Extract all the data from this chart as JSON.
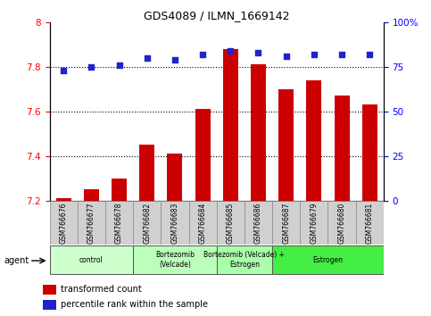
{
  "title": "GDS4089 / ILMN_1669142",
  "samples": [
    "GSM766676",
    "GSM766677",
    "GSM766678",
    "GSM766682",
    "GSM766683",
    "GSM766684",
    "GSM766685",
    "GSM766686",
    "GSM766687",
    "GSM766679",
    "GSM766680",
    "GSM766681"
  ],
  "transformed_counts": [
    7.21,
    7.25,
    7.3,
    7.45,
    7.41,
    7.61,
    7.88,
    7.81,
    7.7,
    7.74,
    7.67,
    7.63
  ],
  "percentile_ranks": [
    73,
    75,
    76,
    80,
    79,
    82,
    84,
    83,
    81,
    82,
    82,
    82
  ],
  "bar_color": "#cc0000",
  "dot_color": "#2222cc",
  "ylim_left": [
    7.2,
    8.0
  ],
  "ylim_right": [
    0,
    100
  ],
  "yticks_left": [
    7.2,
    7.4,
    7.6,
    7.8,
    8.0
  ],
  "ytick_labels_left": [
    "7.2",
    "7.4",
    "7.6",
    "7.8",
    "8"
  ],
  "yticks_right": [
    0,
    25,
    50,
    75,
    100
  ],
  "ytick_labels_right": [
    "0",
    "25",
    "50",
    "75",
    "100%"
  ],
  "groups": [
    {
      "label": "control",
      "start": 0,
      "end": 3,
      "color": "#ccffcc"
    },
    {
      "label": "Bortezomib\n(Velcade)",
      "start": 3,
      "end": 6,
      "color": "#bbffbb"
    },
    {
      "label": "Bortezomib (Velcade) +\nEstrogen",
      "start": 6,
      "end": 8,
      "color": "#aaffaa"
    },
    {
      "label": "Estrogen",
      "start": 8,
      "end": 12,
      "color": "#44ee44"
    }
  ],
  "agent_label": "agent",
  "legend_bar_label": "transformed count",
  "legend_dot_label": "percentile rank within the sample",
  "bar_bottom": 7.2,
  "dotted_lines": [
    7.4,
    7.6,
    7.8
  ],
  "xlim": [
    -0.5,
    11.5
  ]
}
